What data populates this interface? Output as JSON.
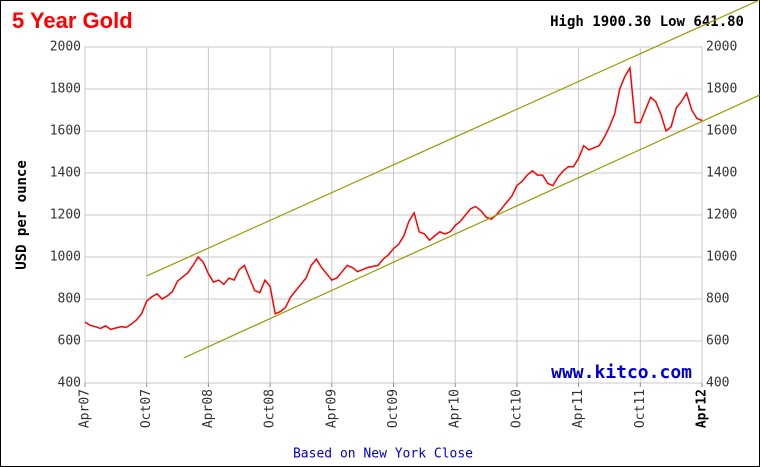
{
  "chart_data": {
    "type": "line",
    "title": "5 Year Gold",
    "subtitle": "High 1900.30 Low 641.80",
    "y_label": "USD per ounce",
    "watermark": "www.kitco.com",
    "x_label": "Based on New York Close",
    "x": [
      0,
      0.5,
      1,
      1.5,
      2,
      2.5,
      3,
      3.5,
      4,
      4.5,
      5,
      5.5,
      6,
      6.5,
      7,
      7.5,
      8,
      8.5,
      9,
      9.5,
      10,
      10.5,
      11,
      11.5,
      12,
      12.5,
      13,
      13.5,
      14,
      14.5,
      15,
      15.5,
      16,
      16.5,
      17,
      17.5,
      18,
      18.5,
      19,
      19.5,
      20,
      20.5,
      21,
      21.5,
      22,
      22.5,
      23,
      23.5,
      24,
      24.5,
      25,
      25.5,
      26,
      26.5,
      27,
      27.5,
      28,
      28.5,
      29,
      29.5,
      30,
      30.5,
      31,
      31.5,
      32,
      32.5,
      33,
      33.5,
      34,
      34.5,
      35,
      35.5,
      36,
      36.5,
      37,
      37.5,
      38,
      38.5,
      39,
      39.5,
      40,
      40.5,
      41,
      41.5,
      42,
      42.5,
      43,
      43.5,
      44,
      44.5,
      45,
      45.5,
      46,
      46.5,
      47,
      47.5,
      48,
      48.5,
      49,
      49.5,
      50,
      50.5,
      51,
      51.5,
      52,
      52.5,
      53,
      53.5,
      54,
      54.5,
      55,
      55.5,
      56,
      56.5,
      57,
      57.5,
      58,
      58.5,
      59,
      59.5,
      60
    ],
    "series": [
      {
        "name": "Gold",
        "color": "#ff0000",
        "values": [
          690,
          675,
          668,
          660,
          672,
          655,
          662,
          668,
          665,
          680,
          700,
          730,
          790,
          810,
          825,
          800,
          815,
          835,
          885,
          905,
          925,
          960,
          1000,
          975,
          920,
          880,
          890,
          870,
          900,
          890,
          940,
          960,
          900,
          840,
          830,
          890,
          860,
          730,
          740,
          760,
          810,
          840,
          870,
          900,
          960,
          990,
          950,
          920,
          890,
          900,
          930,
          960,
          950,
          930,
          940,
          950,
          955,
          960,
          990,
          1010,
          1040,
          1060,
          1100,
          1170,
          1210,
          1120,
          1110,
          1080,
          1100,
          1120,
          1110,
          1120,
          1150,
          1170,
          1200,
          1230,
          1240,
          1220,
          1190,
          1180,
          1200,
          1230,
          1260,
          1290,
          1340,
          1360,
          1390,
          1410,
          1390,
          1390,
          1350,
          1340,
          1380,
          1410,
          1430,
          1430,
          1470,
          1530,
          1510,
          1520,
          1530,
          1570,
          1620,
          1680,
          1800,
          1860,
          1900,
          1640,
          1640,
          1700,
          1760,
          1740,
          1680,
          1600,
          1620,
          1710,
          1740,
          1780,
          1700,
          1660,
          1650
        ]
      }
    ],
    "trend_lines": [
      {
        "color": "#999900",
        "x": [
          6,
          65.6
        ],
        "y": [
          910,
          2224
        ]
      },
      {
        "color": "#999900",
        "x": [
          9.6,
          65.6
        ],
        "y": [
          519,
          1771
        ]
      }
    ],
    "xlim": [
      0,
      60
    ],
    "xticks": [
      {
        "value": 0,
        "label": "Apr07"
      },
      {
        "value": 6,
        "label": "Oct07"
      },
      {
        "value": 12,
        "label": "Apr08"
      },
      {
        "value": 18,
        "label": "Oct08"
      },
      {
        "value": 24,
        "label": "Apr09"
      },
      {
        "value": 30,
        "label": "Oct09"
      },
      {
        "value": 36,
        "label": "Apr10"
      },
      {
        "value": 42,
        "label": "Oct10"
      },
      {
        "value": 48,
        "label": "Apr11"
      },
      {
        "value": 54,
        "label": "Oct11"
      },
      {
        "value": 60,
        "label": "Apr12"
      }
    ],
    "ylim": [
      400,
      2000
    ],
    "yticks": [
      400,
      600,
      800,
      1000,
      1200,
      1400,
      1600,
      1800,
      2000
    ],
    "grid": true
  }
}
